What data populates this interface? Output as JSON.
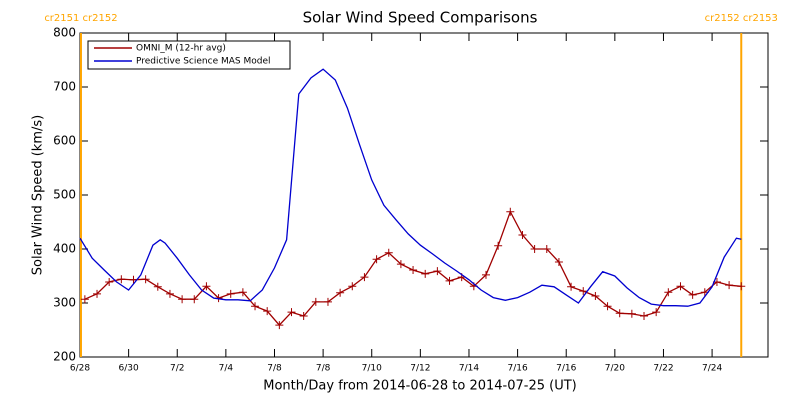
{
  "chart_data": {
    "type": "line",
    "title": "Solar Wind Speed Comparisons",
    "x_label": "Month/Day from 2014-06-28 to 2014-07-25 (UT)",
    "y_label": "Solar Wind Speed (km/s)",
    "xlim": [
      0,
      28.3
    ],
    "ylim": [
      200,
      800
    ],
    "xticks": [
      {
        "value": 0,
        "label": "6/28"
      },
      {
        "value": 2,
        "label": "6/30"
      },
      {
        "value": 4,
        "label": "7/2"
      },
      {
        "value": 6,
        "label": "7/4"
      },
      {
        "value": 8,
        "label": "7/8"
      },
      {
        "value": 10,
        "label": "7/8"
      },
      {
        "value": 12,
        "label": "7/10"
      },
      {
        "value": 14,
        "label": "7/12"
      },
      {
        "value": 16,
        "label": "7/14"
      },
      {
        "value": 18,
        "label": "7/16"
      },
      {
        "value": 20,
        "label": "7/16"
      },
      {
        "value": 22,
        "label": "7/20"
      },
      {
        "value": 24,
        "label": "7/22"
      },
      {
        "value": 26,
        "label": "7/24"
      }
    ],
    "yticks": [
      200,
      300,
      400,
      500,
      600,
      700,
      800
    ],
    "legend": "upper left",
    "carrington": [
      {
        "x": 0.04,
        "label": "cr2151 cr2152"
      },
      {
        "x": 27.2,
        "label": "cr2152 cr2153"
      }
    ],
    "boundary_color": "#ffa500",
    "series": [
      {
        "name": "OMNI_M (12-hr avg)",
        "color": "#a00000",
        "markers": true,
        "x": [
          0.2,
          0.7,
          1.2,
          1.7,
          2.2,
          2.7,
          3.2,
          3.7,
          4.2,
          4.7,
          5.2,
          5.7,
          6.2,
          6.7,
          7.2,
          7.7,
          8.2,
          8.7,
          9.2,
          9.7,
          10.2,
          10.7,
          11.2,
          11.7,
          12.2,
          12.7,
          13.2,
          13.7,
          14.2,
          14.7,
          15.2,
          15.7,
          16.2,
          16.7,
          17.2,
          17.7,
          18.2,
          18.7,
          19.2,
          19.7,
          20.2,
          20.7,
          21.2,
          21.7,
          22.2,
          22.7,
          23.2,
          23.7,
          24.2,
          24.7,
          25.2,
          25.7,
          26.2,
          26.7,
          27.2
        ],
        "values": [
          307,
          317,
          339,
          344,
          343,
          344,
          330,
          317,
          307,
          307,
          331,
          309,
          317,
          320,
          294,
          285,
          259,
          283,
          276,
          302,
          302,
          319,
          331,
          348,
          381,
          393,
          372,
          361,
          354,
          359,
          341,
          348,
          331,
          352,
          406,
          469,
          426,
          400,
          400,
          376,
          330,
          322,
          313,
          294,
          281,
          280,
          276,
          283,
          320,
          331,
          315,
          320,
          339,
          333,
          331
        ]
      },
      {
        "name": "Predictive Science MAS Model",
        "color": "#0000d0",
        "markers": false,
        "x": [
          0,
          0.5,
          1,
          1.5,
          2,
          2.5,
          3,
          3.3,
          3.5,
          4,
          4.5,
          5,
          5.5,
          6,
          6.5,
          7,
          7.5,
          8,
          8.5,
          9,
          9.5,
          10,
          10.5,
          11,
          11.5,
          12,
          12.5,
          13,
          13.5,
          14,
          14.5,
          15,
          15.5,
          16,
          16.5,
          17,
          17.5,
          18,
          18.5,
          19,
          19.5,
          20,
          20.5,
          21,
          21.5,
          22,
          22.5,
          23,
          23.5,
          24,
          24.5,
          25,
          25.5,
          26,
          26.5,
          27,
          27.2
        ],
        "values": [
          420,
          383,
          361,
          339,
          324,
          352,
          407,
          417,
          411,
          383,
          352,
          324,
          309,
          306,
          306,
          304,
          324,
          365,
          417,
          687,
          717,
          733,
          713,
          661,
          593,
          528,
          481,
          454,
          428,
          407,
          391,
          374,
          359,
          343,
          324,
          310,
          305,
          310,
          320,
          333,
          330,
          315,
          300,
          330,
          358,
          350,
          328,
          310,
          298,
          295,
          295,
          294,
          300,
          330,
          385,
          420,
          418
        ]
      }
    ]
  }
}
